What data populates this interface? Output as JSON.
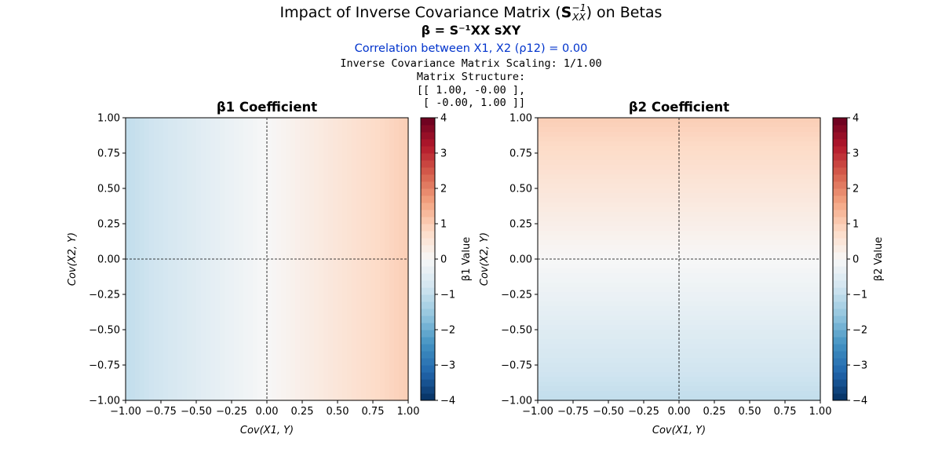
{
  "title_prefix": "Impact of Inverse Covariance Matrix (",
  "title_suffix": ") on Betas",
  "formula": "β = S⁻¹XX sXY",
  "correlation_label": "Correlation between X1, X2 (ρ12) = 0.00",
  "scaling_label": "Inverse Covariance Matrix Scaling: 1/1.00",
  "matrix_structure_label": "Matrix Structure:",
  "matrix_rows": [
    "[[ 1.00, -0.00 ],",
    " [ -0.00, 1.00 ]]"
  ],
  "colormap": "RdBu_r",
  "chart_data": [
    {
      "type": "heatmap",
      "title": "β1 Coefficient",
      "xlabel": "Cov(X1, Y)",
      "ylabel": "Cov(X2, Y)",
      "xlim": [
        -1,
        1
      ],
      "ylim": [
        -1,
        1
      ],
      "xticks": [
        "−1.00",
        "−0.75",
        "−0.50",
        "−0.25",
        "0.00",
        "0.25",
        "0.50",
        "0.75",
        "1.00"
      ],
      "yticks": [
        "−1.00",
        "−0.75",
        "−0.50",
        "−0.25",
        "0.00",
        "0.25",
        "0.50",
        "0.75",
        "1.00"
      ],
      "function": "beta1 = 1.00*Cov(X1,Y) - 0.00*Cov(X2,Y)",
      "coef": [
        1.0,
        0.0
      ],
      "colorbar": {
        "label": "β1 Value",
        "range": [
          -4,
          4
        ],
        "ticks": [
          "4",
          "3",
          "2",
          "1",
          "0",
          "−1",
          "−2",
          "−3",
          "−4"
        ]
      },
      "reference_lines": {
        "x": 0,
        "y": 0,
        "style": "dashed"
      }
    },
    {
      "type": "heatmap",
      "title": "β2 Coefficient",
      "xlabel": "Cov(X1, Y)",
      "ylabel": "Cov(X2, Y)",
      "xlim": [
        -1,
        1
      ],
      "ylim": [
        -1,
        1
      ],
      "xticks": [
        "−1.00",
        "−0.75",
        "−0.50",
        "−0.25",
        "0.00",
        "0.25",
        "0.50",
        "0.75",
        "1.00"
      ],
      "yticks": [
        "−1.00",
        "−0.75",
        "−0.50",
        "−0.25",
        "0.00",
        "0.25",
        "0.50",
        "0.75",
        "1.00"
      ],
      "function": "beta2 = -0.00*Cov(X1,Y) + 1.00*Cov(X2,Y)",
      "coef": [
        0.0,
        1.0
      ],
      "colorbar": {
        "label": "β2 Value",
        "range": [
          -4,
          4
        ],
        "ticks": [
          "4",
          "3",
          "2",
          "1",
          "0",
          "−1",
          "−2",
          "−3",
          "−4"
        ]
      },
      "reference_lines": {
        "x": 0,
        "y": 0,
        "style": "dashed"
      }
    }
  ]
}
